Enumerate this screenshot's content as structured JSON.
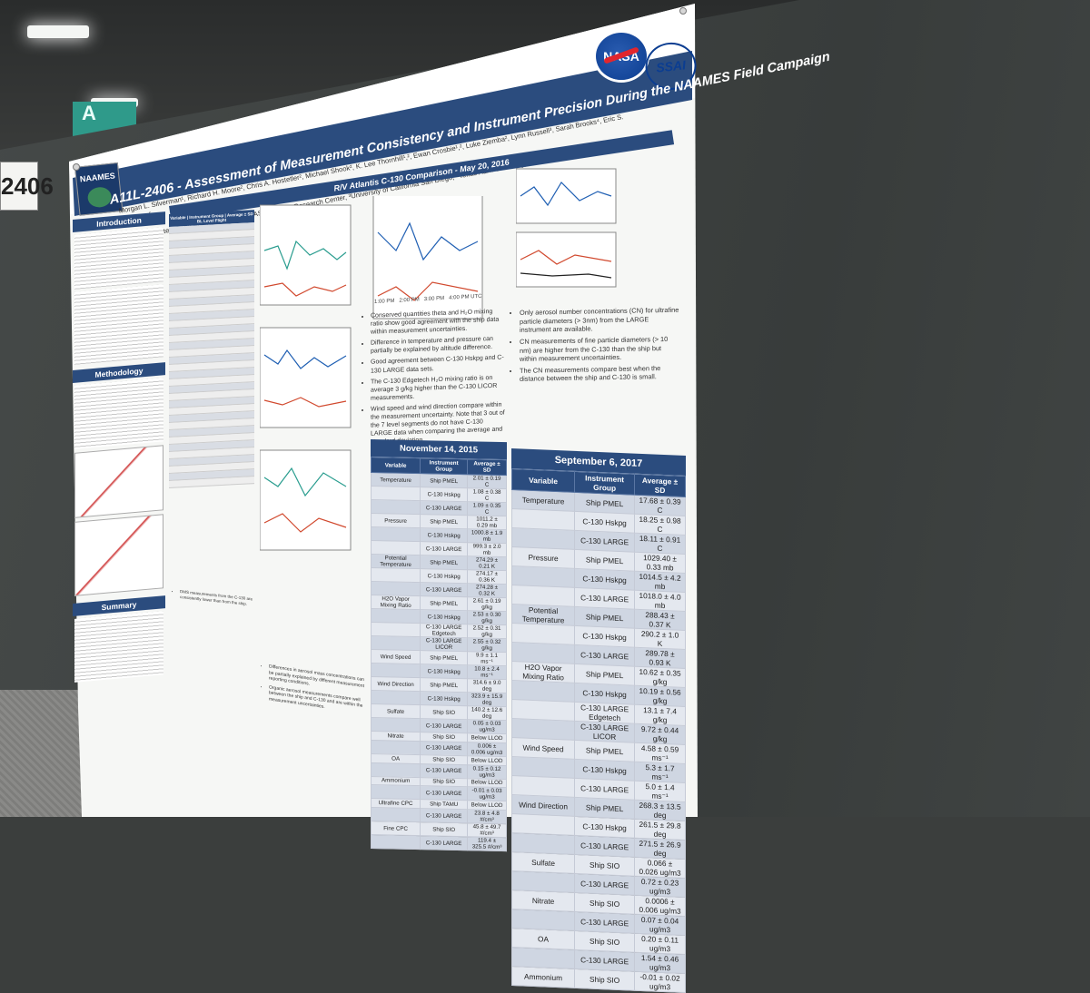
{
  "booth": {
    "number": "2406"
  },
  "venue": {
    "sign_text": "A"
  },
  "poster": {
    "title": "A11L-2406 - Assessment of Measurement Consistency and Instrument Precision During the NAAMES Field Campaign",
    "authors_line1": "Morgan L. Silverman¹, Richard H. Moore², Chris A. Hostetler², Michael Shook², K. Lee Thornhill¹,², Ewan Crosbie¹,², Luke Ziemba², Lynn Russell³, Sarah Brooks⁴, Eric S. Saltzman⁵,",
    "authors_line2": "Timothy S. Bates⁶, James E. Johnson⁶, Mary M. Kleb², and Gao Chen²",
    "affiliations": "¹Science Systems and Applications Inc., ²NASA Langley Research Center, ³University of California San Diego, ⁴Texas A&M University, ⁵University of California Irvine, ⁶NOAA PMEL",
    "logos": {
      "naames": "NAAMES",
      "nasa": "NASA",
      "ssai": "SSAI"
    },
    "sections": {
      "introduction": "Introduction",
      "methodology": "Methodology",
      "summary": "Summary"
    },
    "comparison_title": "R/V Atlantis C-130 Comparison - May 20, 2016",
    "mid_table_headers": [
      "Variable",
      "Instrument Group",
      "Average ± SD BL Level Flight"
    ],
    "middle_bullets": [
      "Conserved quantities theta and H₂O mixing ratio show good agreement with the ship data within measurement uncertainties.",
      "Difference in temperature and pressure can partially be explained by altitude difference.",
      "Good agreement between C-130 Hskpg and C-130 LARGE data sets.",
      "The C-130 Edgetech H₂O mixing ratio is on average 3 g/kg higher than the C-130 LICOR measurements.",
      "Wind speed and wind direction compare within the measurement uncertainty. Note that 3 out of the 7 level segments do not have C-130 LARGE data when comparing the average and standard deviation."
    ],
    "right_bullets": [
      "Only aerosol number concentrations (CN) for ultrafine particle diameters (> 3nm) from the LARGE instrument are available.",
      "CN measurements of fine particle diameters (> 10 nm) are higher from the C-130 than the ship but within measurement uncertainties.",
      "The CN measurements compare best when the distance between the ship and C-130 is small."
    ],
    "lower_bullets": [
      "DMS measurements from the C-130 are consistently lower than from the ship.",
      "Differences in aerosol mass concentrations can be partially explained by different measurement reporting conditions.",
      "Organic aerosol measurements compare well between the ship and C-130 and are within the measurement uncertainties."
    ],
    "chart_axes": {
      "x_label": "UTC",
      "times": [
        "1:00 PM",
        "2:00 PM",
        "3:00 PM",
        "4:00 PM"
      ]
    }
  },
  "colors": {
    "band": "#2b4c7e",
    "ship": "#2a9d8f",
    "c130": "#d1492e",
    "large": "#1f5fb3"
  },
  "tables": {
    "headers": [
      "Variable",
      "Instrument Group",
      "Average ± SD"
    ],
    "november": {
      "date": "November 14, 2015",
      "rows": [
        [
          "Temperature",
          "Ship PMEL",
          "2.01 ± 0.19 C"
        ],
        [
          "",
          "C-130 Hskpg",
          "1.08 ± 0.38 C"
        ],
        [
          "",
          "C-130 LARGE",
          "1.09 ± 0.35 C"
        ],
        [
          "Pressure",
          "Ship PMEL",
          "1011.2 ± 0.29 mb"
        ],
        [
          "",
          "C-130 Hskpg",
          "1000.8 ± 1.9 mb"
        ],
        [
          "",
          "C-130 LARGE",
          "999.3 ± 2.0 mb"
        ],
        [
          "Potential Temperature",
          "Ship PMEL",
          "274.29 ± 0.21 K"
        ],
        [
          "",
          "C-130 Hskpg",
          "274.17 ± 0.36 K"
        ],
        [
          "",
          "C-130 LARGE",
          "274.28 ± 0.32 K"
        ],
        [
          "H2O Vapor Mixing Ratio",
          "Ship PMEL",
          "2.61 ± 0.19 g/kg"
        ],
        [
          "",
          "C-130 Hskpg",
          "2.53 ± 0.30 g/kg"
        ],
        [
          "",
          "C-130 LARGE Edgetech",
          "2.52 ± 0.31 g/kg"
        ],
        [
          "",
          "C-130 LARGE LICOR",
          "2.55 ± 0.32 g/kg"
        ],
        [
          "Wind Speed",
          "Ship PMEL",
          "9.9 ± 1.1 ms⁻¹"
        ],
        [
          "",
          "C-130 Hskpg",
          "10.8 ± 2.4 ms⁻¹"
        ],
        [
          "Wind Direction",
          "Ship PMEL",
          "314.6 ± 9.0 deg"
        ],
        [
          "",
          "C-130 Hskpg",
          "323.9 ± 15.9 deg"
        ],
        [
          "Sulfate",
          "Ship SIO",
          "140.2 ± 12.6 deg"
        ],
        [
          "",
          "C-130 LARGE",
          "0.05 ± 0.03 ug/m3"
        ],
        [
          "Nitrate",
          "Ship SIO",
          "Below LLOD"
        ],
        [
          "",
          "C-130 LARGE",
          "0.006 ± 0.006 ug/m3"
        ],
        [
          "OA",
          "Ship SIO",
          "Below LLOD"
        ],
        [
          "",
          "C-130 LARGE",
          "0.15 ± 0.12 ug/m3"
        ],
        [
          "Ammonium",
          "Ship SIO",
          "Below LLOD"
        ],
        [
          "",
          "C-130 LARGE",
          "-0.01 ± 0.03 ug/m3"
        ],
        [
          "Ultrafine CPC",
          "Ship TAMU",
          "Below LLOD"
        ],
        [
          "",
          "C-130 LARGE",
          "23.8 ± 4.8 #/cm³"
        ],
        [
          "Fine CPC",
          "Ship SIO",
          "45.8 ± 49.7 #/cm³"
        ],
        [
          "",
          "C-130 LARGE",
          "119.4 ± 325.5 #/cm³"
        ]
      ]
    },
    "september": {
      "date": "September 6, 2017",
      "rows": [
        [
          "Temperature",
          "Ship PMEL",
          "17.68 ± 0.39 C"
        ],
        [
          "",
          "C-130 Hskpg",
          "18.25 ± 0.98 C"
        ],
        [
          "",
          "C-130 LARGE",
          "18.11 ± 0.91 C"
        ],
        [
          "Pressure",
          "Ship PMEL",
          "1029.40 ± 0.33 mb"
        ],
        [
          "",
          "C-130 Hskpg",
          "1014.5 ± 4.2 mb"
        ],
        [
          "",
          "C-130 LARGE",
          "1018.0 ± 4.0 mb"
        ],
        [
          "Potential Temperature",
          "Ship PMEL",
          "288.43 ± 0.37 K"
        ],
        [
          "",
          "C-130 Hskpg",
          "290.2 ± 1.0 K"
        ],
        [
          "",
          "C-130 LARGE",
          "289.78 ± 0.93 K"
        ],
        [
          "H2O Vapor Mixing Ratio",
          "Ship PMEL",
          "10.62 ± 0.35 g/kg"
        ],
        [
          "",
          "C-130 Hskpg",
          "10.19 ± 0.56 g/kg"
        ],
        [
          "",
          "C-130 LARGE Edgetech",
          "13.1 ± 7.4 g/kg"
        ],
        [
          "",
          "C-130 LARGE LICOR",
          "9.72 ± 0.44 g/kg"
        ],
        [
          "Wind Speed",
          "Ship PMEL",
          "4.58 ± 0.59 ms⁻¹"
        ],
        [
          "",
          "C-130 Hskpg",
          "5.3 ± 1.7 ms⁻¹"
        ],
        [
          "",
          "C-130 LARGE",
          "5.0 ± 1.4 ms⁻¹"
        ],
        [
          "Wind Direction",
          "Ship PMEL",
          "268.3 ± 13.5 deg"
        ],
        [
          "",
          "C-130 Hskpg",
          "261.5 ± 29.8 deg"
        ],
        [
          "",
          "C-130 LARGE",
          "271.5 ± 26.9 deg"
        ],
        [
          "Sulfate",
          "Ship SIO",
          "0.066 ± 0.026 ug/m3"
        ],
        [
          "",
          "C-130 LARGE",
          "0.72 ± 0.23 ug/m3"
        ],
        [
          "Nitrate",
          "Ship SIO",
          "0.0006 ± 0.006 ug/m3"
        ],
        [
          "",
          "C-130 LARGE",
          "0.07 ± 0.04 ug/m3"
        ],
        [
          "OA",
          "Ship SIO",
          "0.20 ± 0.11 ug/m3"
        ],
        [
          "",
          "C-130 LARGE",
          "1.54 ± 0.46 ug/m3"
        ],
        [
          "Ammonium",
          "Ship SIO",
          "-0.01 ± 0.02 ug/m3"
        ]
      ]
    }
  }
}
